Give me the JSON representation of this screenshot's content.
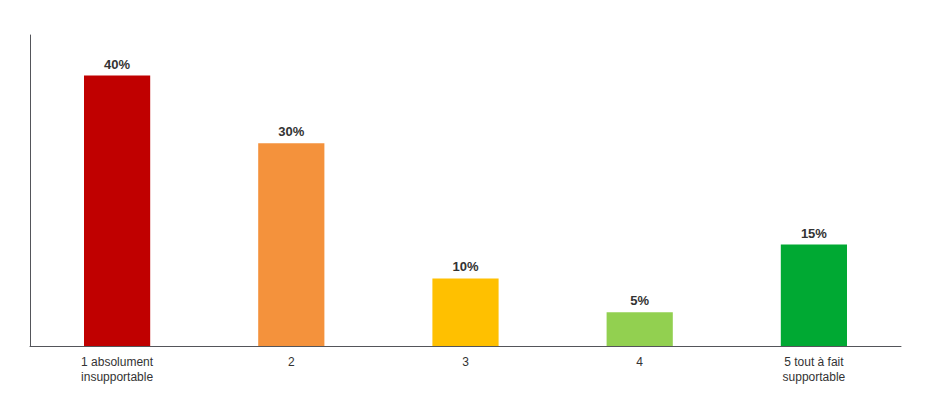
{
  "chart_data": {
    "type": "bar",
    "categories": [
      "1 absolument\ninsupportable",
      "2",
      "3",
      "4",
      "5 tout à fait\nsupportable"
    ],
    "values": [
      40,
      30,
      10,
      5,
      15
    ],
    "value_labels": [
      "40%",
      "30%",
      "10%",
      "5%",
      "15%"
    ],
    "colors": [
      "#c00000",
      "#f4923c",
      "#ffc000",
      "#92d050",
      "#00a933"
    ],
    "ylim": [
      0,
      46
    ],
    "yticks": [],
    "grid": false,
    "tick_labels": "x",
    "data_labels": true
  }
}
